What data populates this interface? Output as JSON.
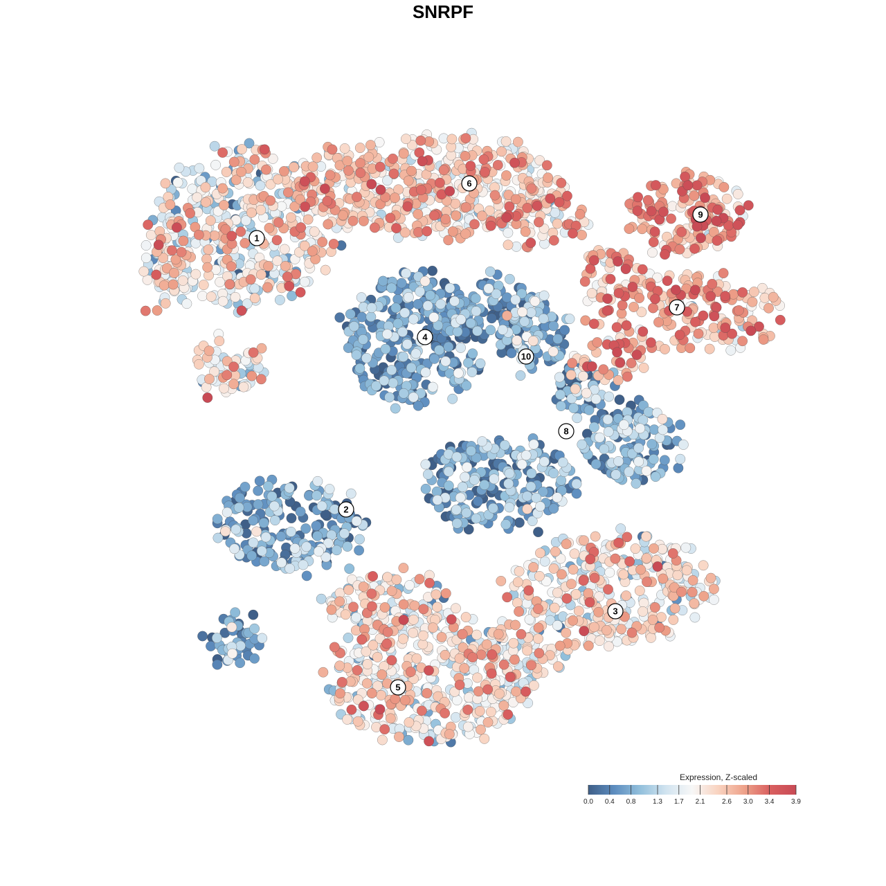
{
  "chart_data": {
    "type": "scatter",
    "title": "SNRPF",
    "xlabel": "",
    "ylabel": "",
    "grid": false,
    "legend": {
      "title": "Expression, Z-scaled",
      "placement": "bottom-right",
      "min": 0.0,
      "max": 3.9,
      "ticks": [
        "0.0",
        "0.4",
        "0.8",
        "1.3",
        "1.7",
        "2.1",
        "2.6",
        "3.0",
        "3.4",
        "3.9"
      ],
      "tick_values": [
        0.0,
        0.4,
        0.8,
        1.3,
        1.7,
        2.1,
        2.6,
        3.0,
        3.4,
        3.9
      ],
      "colors": [
        "#3f5f88",
        "#5d8dbf",
        "#93c0dc",
        "#d2e4f0",
        "#f7f7f7",
        "#f9d3c0",
        "#eea28a",
        "#d95f5f",
        "#c84a55"
      ]
    },
    "clusters": [
      {
        "label": "1",
        "mean_expression": 1.9,
        "spread": 0.8
      },
      {
        "label": "2",
        "mean_expression": 0.7,
        "spread": 0.6
      },
      {
        "label": "3",
        "mean_expression": 2.1,
        "spread": 0.7
      },
      {
        "label": "4",
        "mean_expression": 0.6,
        "spread": 0.5
      },
      {
        "label": "5",
        "mean_expression": 2.0,
        "spread": 0.7
      },
      {
        "label": "6",
        "mean_expression": 2.4,
        "spread": 0.6
      },
      {
        "label": "7",
        "mean_expression": 2.8,
        "spread": 0.6
      },
      {
        "label": "8",
        "mean_expression": 0.7,
        "spread": 0.6
      },
      {
        "label": "9",
        "mean_expression": 2.8,
        "spread": 0.6
      },
      {
        "label": "10",
        "mean_expression": 0.9,
        "spread": 0.6
      }
    ]
  }
}
